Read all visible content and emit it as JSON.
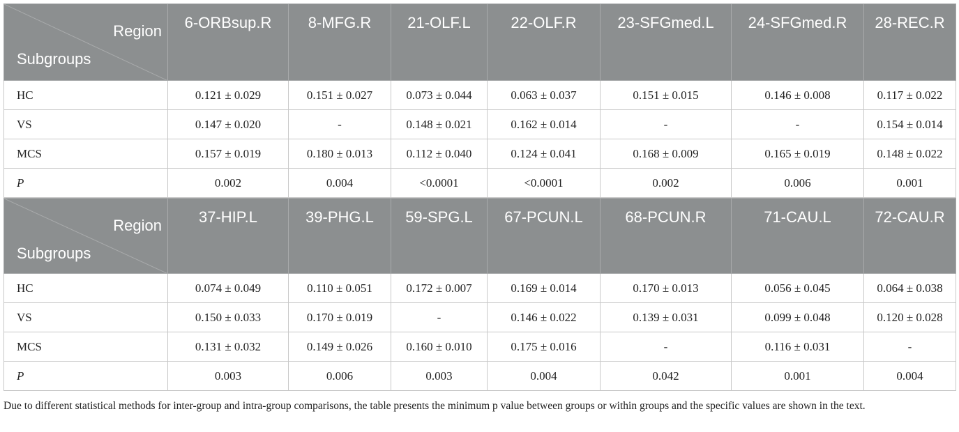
{
  "tables": [
    {
      "region_label": "Region",
      "subgroups_label": "Subgroups",
      "columns": [
        "6-ORBsup.R",
        "8-MFG.R",
        "21-OLF.L",
        "22-OLF.R",
        "23-SFGmed.L",
        "24-SFGmed.R",
        "28-REC.R"
      ],
      "rows": [
        {
          "group": "HC",
          "values": [
            "0.121 ± 0.029",
            "0.151 ± 0.027",
            "0.073 ± 0.044",
            "0.063 ± 0.037",
            "0.151 ± 0.015",
            "0.146 ± 0.008",
            "0.117 ± 0.022"
          ]
        },
        {
          "group": "VS",
          "values": [
            "0.147 ± 0.020",
            "-",
            "0.148 ± 0.021",
            "0.162 ± 0.014",
            "-",
            "-",
            "0.154 ± 0.014"
          ]
        },
        {
          "group": "MCS",
          "values": [
            "0.157 ± 0.019",
            "0.180 ± 0.013",
            "0.112 ± 0.040",
            "0.124 ± 0.041",
            "0.168 ± 0.009",
            "0.165 ± 0.019",
            "0.148 ± 0.022"
          ]
        },
        {
          "group": "P",
          "values": [
            "0.002",
            "0.004",
            "<0.0001",
            "<0.0001",
            "0.002",
            "0.006",
            "0.001"
          ]
        }
      ]
    },
    {
      "region_label": "Region",
      "subgroups_label": "Subgroups",
      "columns": [
        "37-HIP.L",
        "39-PHG.L",
        "59-SPG.L",
        "67-PCUN.L",
        "68-PCUN.R",
        "71-CAU.L",
        "72-CAU.R"
      ],
      "rows": [
        {
          "group": "HC",
          "values": [
            "0.074 ± 0.049",
            "0.110 ± 0.051",
            "0.172 ± 0.007",
            "0.169 ± 0.014",
            "0.170 ± 0.013",
            "0.056 ± 0.045",
            "0.064 ± 0.038"
          ]
        },
        {
          "group": "VS",
          "values": [
            "0.150 ± 0.033",
            "0.170 ± 0.019",
            "-",
            "0.146 ± 0.022",
            "0.139 ± 0.031",
            "0.099 ± 0.048",
            "0.120 ± 0.028"
          ]
        },
        {
          "group": "MCS",
          "values": [
            "0.131 ± 0.032",
            "0.149 ± 0.026",
            "0.160 ± 0.010",
            "0.175 ± 0.016",
            "-",
            "0.116 ± 0.031",
            "-"
          ]
        },
        {
          "group": "P",
          "values": [
            "0.003",
            "0.006",
            "0.003",
            "0.004",
            "0.042",
            "0.001",
            "0.004"
          ]
        }
      ]
    }
  ],
  "footnote": "Due to different statistical methods for inter-group and intra-group comparisons, the table presents the minimum p value between groups or within groups and the specific values are shown in the text."
}
